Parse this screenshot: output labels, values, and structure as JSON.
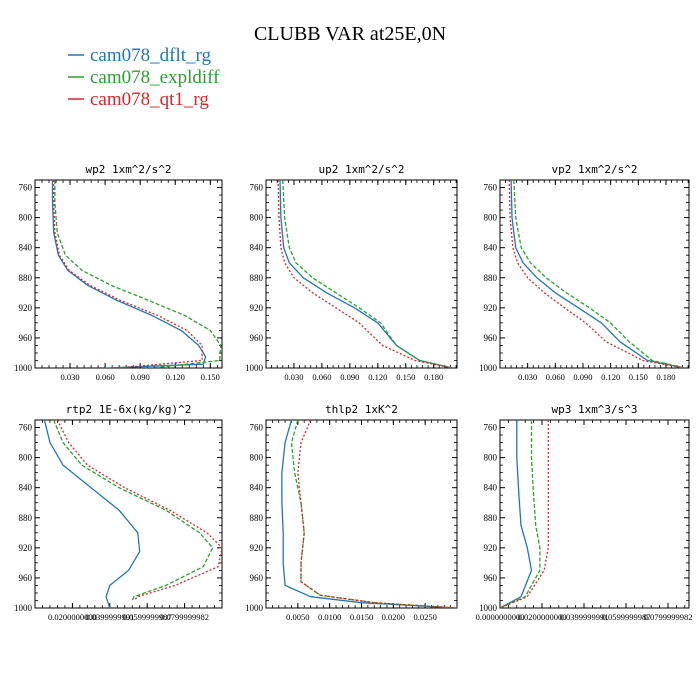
{
  "figure": {
    "title": "CLUBB VAR at25E,0N",
    "legend": [
      {
        "label": "cam078_dflt_rg",
        "color": "#1f77b4"
      },
      {
        "label": "cam078_expldiff",
        "color": "#2ca02c"
      },
      {
        "label": "cam078_qt1_rg",
        "color": "#d62728"
      }
    ]
  },
  "chart_data": [
    {
      "type": "line",
      "title": "wp2  1xm^2/s^2",
      "xlim": [
        0.0,
        0.16
      ],
      "ylim": [
        1000,
        750
      ],
      "x_ticks": [
        0.03,
        0.06,
        0.09,
        0.12,
        0.15
      ],
      "x_tick_labels": [
        "0.030",
        "0.060",
        "0.090",
        "0.120",
        "0.150"
      ],
      "y_ticks": [
        760,
        800,
        840,
        880,
        920,
        960,
        1000
      ],
      "y_tick_labels": [
        "760",
        "800",
        "840",
        "880",
        "920",
        "960",
        "1000"
      ],
      "series": [
        {
          "name": "cam078_dflt_rg",
          "color": "#1f77b4",
          "dash": "",
          "x": [
            0.015,
            0.015,
            0.016,
            0.02,
            0.028,
            0.045,
            0.07,
            0.1,
            0.125,
            0.14,
            0.146,
            0.144,
            0.06
          ],
          "y": [
            750,
            780,
            820,
            850,
            870,
            890,
            910,
            930,
            950,
            970,
            985,
            995,
            1000
          ]
        },
        {
          "name": "cam078_expldiff",
          "color": "#2ca02c",
          "dash": "4,2",
          "x": [
            0.017,
            0.017,
            0.019,
            0.026,
            0.04,
            0.065,
            0.097,
            0.128,
            0.15,
            0.159,
            0.158,
            0.1
          ],
          "y": [
            750,
            780,
            820,
            850,
            870,
            890,
            910,
            930,
            950,
            970,
            990,
            1000
          ]
        },
        {
          "name": "cam078_qt1_rg",
          "color": "#d62728",
          "dash": "2,2",
          "x": [
            0.016,
            0.016,
            0.017,
            0.021,
            0.029,
            0.047,
            0.073,
            0.105,
            0.13,
            0.143,
            0.143,
            0.07
          ],
          "y": [
            750,
            780,
            820,
            850,
            870,
            890,
            910,
            930,
            950,
            970,
            990,
            1000
          ]
        }
      ]
    },
    {
      "type": "line",
      "title": "up2  1xm^2/s^2",
      "xlim": [
        0.0,
        0.205
      ],
      "ylim": [
        1000,
        750
      ],
      "x_ticks": [
        0.03,
        0.06,
        0.09,
        0.12,
        0.15,
        0.18
      ],
      "x_tick_labels": [
        "0.030",
        "0.060",
        "0.090",
        "0.120",
        "0.150",
        "0.180"
      ],
      "y_ticks": [
        760,
        800,
        840,
        880,
        920,
        960,
        1000
      ],
      "y_tick_labels": [
        "760",
        "800",
        "840",
        "880",
        "920",
        "960",
        "1000"
      ],
      "series": [
        {
          "name": "cam078_dflt_rg",
          "color": "#1f77b4",
          "dash": "",
          "x": [
            0.015,
            0.016,
            0.019,
            0.025,
            0.04,
            0.065,
            0.095,
            0.12,
            0.14,
            0.165,
            0.2
          ],
          "y": [
            750,
            800,
            840,
            860,
            880,
            900,
            920,
            940,
            970,
            990,
            1000
          ]
        },
        {
          "name": "cam078_expldiff",
          "color": "#2ca02c",
          "dash": "4,2",
          "x": [
            0.018,
            0.02,
            0.025,
            0.032,
            0.05,
            0.075,
            0.1,
            0.123,
            0.14,
            0.165,
            0.2
          ],
          "y": [
            750,
            800,
            840,
            860,
            880,
            900,
            920,
            940,
            970,
            990,
            1000
          ]
        },
        {
          "name": "cam078_qt1_rg",
          "color": "#d62728",
          "dash": "2,2",
          "x": [
            0.013,
            0.014,
            0.016,
            0.02,
            0.03,
            0.05,
            0.075,
            0.1,
            0.125,
            0.16,
            0.2
          ],
          "y": [
            750,
            800,
            840,
            860,
            880,
            900,
            920,
            940,
            970,
            990,
            1000
          ]
        }
      ]
    },
    {
      "type": "line",
      "title": "vp2  1xm^2/s^2",
      "xlim": [
        0.0,
        0.205
      ],
      "ylim": [
        1000,
        750
      ],
      "x_ticks": [
        0.03,
        0.06,
        0.09,
        0.12,
        0.15,
        0.18
      ],
      "x_tick_labels": [
        "0.030",
        "0.060",
        "0.090",
        "0.120",
        "0.150",
        "0.180"
      ],
      "y_ticks": [
        760,
        800,
        840,
        880,
        920,
        960,
        1000
      ],
      "y_tick_labels": [
        "760",
        "800",
        "840",
        "880",
        "920",
        "960",
        "1000"
      ],
      "series": [
        {
          "name": "cam078_dflt_rg",
          "color": "#1f77b4",
          "dash": "",
          "x": [
            0.012,
            0.013,
            0.017,
            0.025,
            0.04,
            0.06,
            0.085,
            0.11,
            0.13,
            0.16,
            0.2
          ],
          "y": [
            750,
            800,
            840,
            860,
            880,
            900,
            920,
            940,
            965,
            990,
            1000
          ]
        },
        {
          "name": "cam078_expldiff",
          "color": "#2ca02c",
          "dash": "4,2",
          "x": [
            0.015,
            0.017,
            0.023,
            0.033,
            0.05,
            0.072,
            0.097,
            0.12,
            0.14,
            0.165,
            0.2
          ],
          "y": [
            750,
            800,
            840,
            860,
            880,
            900,
            920,
            940,
            965,
            990,
            1000
          ]
        },
        {
          "name": "cam078_qt1_rg",
          "color": "#d62728",
          "dash": "2,2",
          "x": [
            0.01,
            0.011,
            0.014,
            0.019,
            0.03,
            0.048,
            0.07,
            0.093,
            0.115,
            0.155,
            0.2
          ],
          "y": [
            750,
            800,
            840,
            860,
            880,
            900,
            920,
            940,
            965,
            990,
            1000
          ]
        }
      ]
    },
    {
      "type": "line",
      "title": "rtp2  1E-6x(kg/kg)^2",
      "xlim": [
        0.0,
        0.1
      ],
      "ylim": [
        1000,
        750
      ],
      "x_ticks": [
        0.02,
        0.04,
        0.06,
        0.08
      ],
      "x_tick_labels": [
        "0.0200000000",
        "0.0399999991",
        "0.0599999987",
        "0.0799999982"
      ],
      "y_ticks": [
        760,
        800,
        840,
        880,
        920,
        960,
        1000
      ],
      "y_tick_labels": [
        "760",
        "800",
        "840",
        "880",
        "920",
        "960",
        "1000"
      ],
      "series": [
        {
          "name": "cam078_dflt_rg",
          "color": "#1f77b4",
          "dash": "",
          "x": [
            0.005,
            0.008,
            0.015,
            0.03,
            0.045,
            0.055,
            0.056,
            0.05,
            0.04,
            0.038,
            0.04
          ],
          "y": [
            750,
            780,
            810,
            840,
            870,
            900,
            925,
            950,
            970,
            985,
            1000
          ]
        },
        {
          "name": "cam078_expldiff",
          "color": "#2ca02c",
          "dash": "4,2",
          "x": [
            0.01,
            0.015,
            0.025,
            0.045,
            0.07,
            0.088,
            0.095,
            0.09,
            0.07,
            0.053,
            0.052
          ],
          "y": [
            750,
            780,
            810,
            840,
            870,
            900,
            920,
            945,
            970,
            985,
            990
          ]
        },
        {
          "name": "cam078_qt1_rg",
          "color": "#d62728",
          "dash": "2,2",
          "x": [
            0.012,
            0.018,
            0.028,
            0.048,
            0.072,
            0.092,
            0.1,
            0.098,
            0.075,
            0.055,
            0.053
          ],
          "y": [
            750,
            780,
            810,
            840,
            870,
            900,
            920,
            945,
            970,
            985,
            990
          ]
        }
      ]
    },
    {
      "type": "line",
      "title": "thlp2  1xK^2",
      "xlim": [
        0.0,
        0.03
      ],
      "ylim": [
        1000,
        750
      ],
      "x_ticks": [
        0.005,
        0.01,
        0.015,
        0.02,
        0.025
      ],
      "x_tick_labels": [
        "0.0050",
        "0.0100",
        "0.0150",
        "0.0200",
        "0.0250"
      ],
      "y_ticks": [
        760,
        800,
        840,
        880,
        920,
        960,
        1000
      ],
      "y_tick_labels": [
        "760",
        "800",
        "840",
        "880",
        "920",
        "960",
        "1000"
      ],
      "series": [
        {
          "name": "cam078_dflt_rg",
          "color": "#1f77b4",
          "dash": "",
          "x": [
            0.004,
            0.003,
            0.0025,
            0.0025,
            0.0027,
            0.0027,
            0.003,
            0.007,
            0.015,
            0.03
          ],
          "y": [
            750,
            780,
            820,
            860,
            900,
            940,
            970,
            985,
            993,
            1000
          ]
        },
        {
          "name": "cam078_expldiff",
          "color": "#2ca02c",
          "dash": "4,2",
          "x": [
            0.005,
            0.004,
            0.0045,
            0.0055,
            0.006,
            0.0055,
            0.0055,
            0.0085,
            0.017,
            0.03
          ],
          "y": [
            750,
            780,
            820,
            860,
            900,
            940,
            965,
            983,
            993,
            1000
          ]
        },
        {
          "name": "cam078_qt1_rg",
          "color": "#d62728",
          "dash": "2,2",
          "x": [
            0.007,
            0.0055,
            0.005,
            0.0055,
            0.006,
            0.0055,
            0.0055,
            0.0085,
            0.017,
            0.03
          ],
          "y": [
            750,
            780,
            820,
            860,
            900,
            940,
            965,
            983,
            993,
            1000
          ]
        }
      ]
    },
    {
      "type": "line",
      "title": "wp3  1xm^3/s^3",
      "xlim": [
        0.0,
        0.09
      ],
      "ylim": [
        1000,
        750
      ],
      "x_ticks": [
        0.0,
        0.02,
        0.04,
        0.06,
        0.08
      ],
      "x_tick_labels": [
        "0.0000000000",
        "0.0200000000",
        "0.0399999991",
        "0.0599999987",
        "0.0799999982"
      ],
      "y_ticks": [
        760,
        800,
        840,
        880,
        920,
        960,
        1000
      ],
      "y_tick_labels": [
        "760",
        "800",
        "840",
        "880",
        "920",
        "960",
        "1000"
      ],
      "series": [
        {
          "name": "cam078_dflt_rg",
          "color": "#1f77b4",
          "dash": "",
          "x": [
            0.008,
            0.008,
            0.009,
            0.01,
            0.013,
            0.015,
            0.01,
            0.0
          ],
          "y": [
            750,
            800,
            850,
            890,
            920,
            950,
            985,
            1000
          ]
        },
        {
          "name": "cam078_expldiff",
          "color": "#2ca02c",
          "dash": "4,2",
          "x": [
            0.015,
            0.015,
            0.016,
            0.017,
            0.019,
            0.019,
            0.012,
            0.0
          ],
          "y": [
            750,
            800,
            850,
            890,
            920,
            950,
            985,
            1000
          ]
        },
        {
          "name": "cam078_qt1_rg",
          "color": "#d62728",
          "dash": "2,2",
          "x": [
            0.023,
            0.023,
            0.023,
            0.023,
            0.023,
            0.021,
            0.013,
            0.0
          ],
          "y": [
            750,
            800,
            850,
            890,
            920,
            950,
            985,
            1000
          ]
        }
      ]
    }
  ]
}
